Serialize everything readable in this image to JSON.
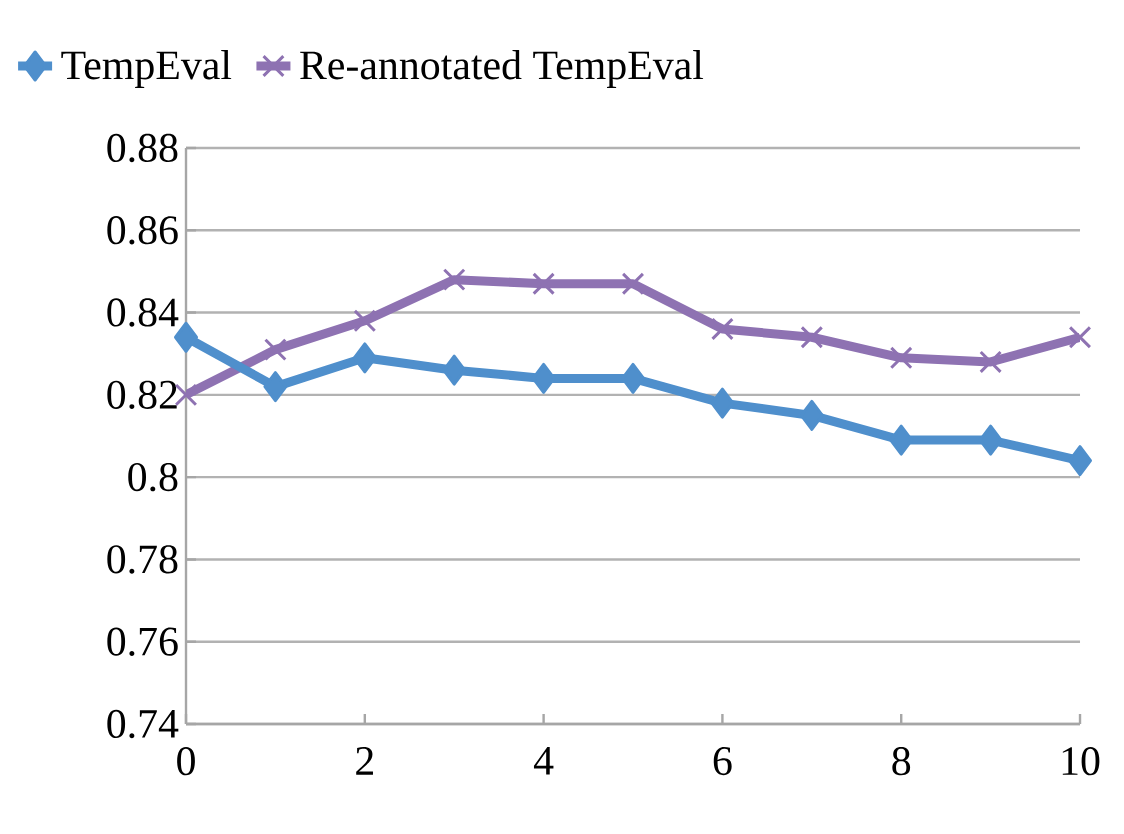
{
  "chart_data": {
    "type": "line",
    "x": [
      0,
      1,
      2,
      3,
      4,
      5,
      6,
      7,
      8,
      9,
      10
    ],
    "series": [
      {
        "name": "TempEval",
        "color": "#4f8fcc",
        "marker": "diamond",
        "values": [
          0.834,
          0.822,
          0.829,
          0.826,
          0.824,
          0.824,
          0.818,
          0.815,
          0.809,
          0.809,
          0.804
        ]
      },
      {
        "name": "Re-annotated TempEval",
        "color": "#8e72b2",
        "marker": "cross",
        "values": [
          0.82,
          0.831,
          0.838,
          0.848,
          0.847,
          0.847,
          0.836,
          0.834,
          0.829,
          0.828,
          0.834
        ]
      }
    ],
    "xlim": [
      0,
      10
    ],
    "xticks": [
      0,
      2,
      4,
      6,
      8,
      10
    ],
    "ylim": [
      0.74,
      0.88
    ],
    "yticks": [
      {
        "value": 0.74,
        "label": "0.74"
      },
      {
        "value": 0.76,
        "label": "0.76"
      },
      {
        "value": 0.78,
        "label": "0.78"
      },
      {
        "value": 0.8,
        "label": "0.8"
      },
      {
        "value": 0.82,
        "label": "0.82"
      },
      {
        "value": 0.84,
        "label": "0.84"
      },
      {
        "value": 0.86,
        "label": "0.86"
      },
      {
        "value": 0.88,
        "label": "0.88"
      }
    ],
    "grid": "y",
    "legend": "top",
    "line_style": "solid"
  }
}
